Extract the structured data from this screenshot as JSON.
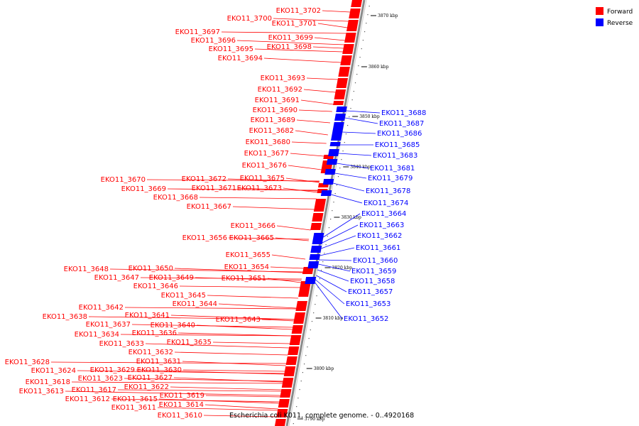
{
  "legend": {
    "forward": {
      "label": "Forward",
      "color": "#ff0000"
    },
    "reverse": {
      "label": "Reverse",
      "color": "#0000ff"
    }
  },
  "title": "Escherichia coli K011, complete genome. - 0..4920168",
  "ticks": [
    "3870 kbp",
    "3860 kbp",
    "3850 kbp",
    "3840 kbp",
    "3830 kbp",
    "3820 kbp",
    "3810 kbp",
    "3800 kbp",
    "3790 kbp"
  ],
  "forward_genes": [
    "EKO11_3702",
    "EKO11_3700",
    "EKO11_3701",
    "EKO11_3697",
    "EKO11_3699",
    "EKO11_3696",
    "EKO11_3698",
    "EKO11_3695",
    "EKO11_3694",
    "EKO11_3693",
    "EKO11_3692",
    "EKO11_3691",
    "EKO11_3690",
    "EKO11_3689",
    "EKO11_3682",
    "EKO11_3680",
    "EKO11_3677",
    "EKO11_3676",
    "EKO11_3670",
    "EKO11_3672",
    "EKO11_3675",
    "EKO11_3669",
    "EKO11_3671",
    "EKO11_3673",
    "EKO11_3668",
    "EKO11_3667",
    "EKO11_3666",
    "EKO11_3656",
    "EKO11_3665",
    "EKO11_3655",
    "EKO11_3654",
    "EKO11_3648",
    "EKO11_3650",
    "EKO11_3647",
    "EKO11_3649",
    "EKO11_3651",
    "EKO11_3646",
    "EKO11_3645",
    "EKO11_3644",
    "EKO11_3642",
    "EKO11_3638",
    "EKO11_3641",
    "EKO11_3643",
    "EKO11_3637",
    "EKO11_3640",
    "EKO11_3634",
    "EKO11_3636",
    "EKO11_3633",
    "EKO11_3635",
    "EKO11_3632",
    "EKO11_3631",
    "EKO11_3628",
    "EKO11_3624",
    "EKO11_3629",
    "EKO11_3630",
    "EKO11_3623",
    "EKO11_3627",
    "EKO11_3618",
    "EKO11_3622",
    "EKO11_3613",
    "EKO11_3617",
    "EKO11_3612",
    "EKO11_3615",
    "EKO11_3619",
    "EKO11_3611",
    "EKO11_3614",
    "EKO11_3610"
  ],
  "reverse_genes": [
    "EKO11_3688",
    "EKO11_3687",
    "EKO11_3686",
    "EKO11_3685",
    "EKO11_3683",
    "EKO11_3681",
    "EKO11_3679",
    "EKO11_3678",
    "EKO11_3674",
    "EKO11_3664",
    "EKO11_3663",
    "EKO11_3662",
    "EKO11_3661",
    "EKO11_3660",
    "EKO11_3659",
    "EKO11_3658",
    "EKO11_3657",
    "EKO11_3653",
    "EKO11_3652"
  ]
}
